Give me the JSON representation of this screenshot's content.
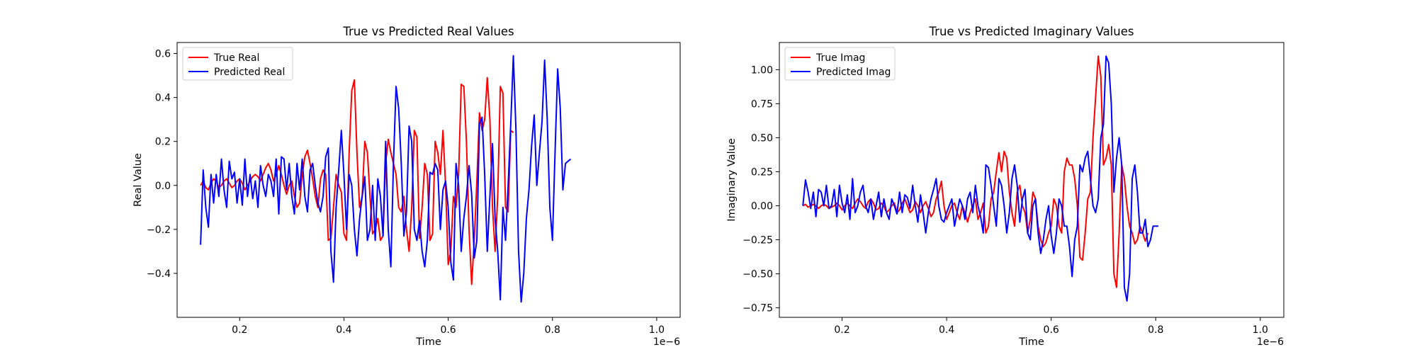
{
  "chart_data": [
    {
      "type": "line",
      "title": "True vs Predicted Real Values",
      "xlabel": "Time",
      "ylabel": "Real Value",
      "x_offset_label": "1e−6",
      "x_scale": 1e-06,
      "xlim": [
        0.08,
        1.045
      ],
      "ylim": [
        -0.6,
        0.65
      ],
      "x_ticks": [
        0.2,
        0.4,
        0.6,
        0.8,
        1.0
      ],
      "x_tick_labels": [
        "0.2",
        "0.4",
        "0.6",
        "0.8",
        "1.0"
      ],
      "y_ticks": [
        -0.4,
        -0.2,
        0.0,
        0.2,
        0.4,
        0.6
      ],
      "y_tick_labels": [
        "−0.4",
        "−0.2",
        "0.0",
        "0.2",
        "0.4",
        "0.6"
      ],
      "grid": false,
      "legend_position": "top-left",
      "x_start": 0.125,
      "x_step": 0.005,
      "series": [
        {
          "name": "True Real",
          "color": "#ff0000",
          "values": [
            0.0,
            0.02,
            -0.01,
            -0.02,
            0.01,
            0.03,
            0.02,
            -0.01,
            0.0,
            0.02,
            0.03,
            0.01,
            -0.01,
            0.0,
            0.02,
            0.03,
            0.01,
            -0.02,
            0.0,
            0.02,
            0.04,
            0.05,
            0.04,
            0.02,
            0.05,
            0.08,
            0.1,
            0.07,
            0.02,
            0.05,
            0.09,
            0.05,
            0.0,
            -0.04,
            0.0,
            0.02,
            -0.05,
            -0.1,
            -0.08,
            0.05,
            0.13,
            0.16,
            0.1,
            0.03,
            -0.05,
            -0.1,
            0.03,
            0.07,
            0.05,
            -0.25,
            -0.24,
            -0.1,
            0.05,
            0.0,
            -0.03,
            -0.22,
            -0.25,
            0.15,
            0.43,
            0.48,
            0.15,
            -0.1,
            -0.05,
            0.2,
            0.15,
            -0.05,
            -0.22,
            -0.2,
            -0.15,
            -0.25,
            -0.23,
            0.1,
            0.21,
            0.15,
            0.1,
            0.05,
            -0.1,
            -0.12,
            -0.05,
            -0.2,
            -0.3,
            -0.1,
            0.25,
            0.22,
            -0.24,
            -0.1,
            0.1,
            0.05,
            -0.25,
            -0.22,
            0.2,
            0.15,
            0.05,
            0.25,
            0.0,
            -0.36,
            -0.3,
            -0.05,
            -0.1,
            0.05,
            0.46,
            0.45,
            0.2,
            -0.2,
            -0.45,
            -0.25,
            0.02,
            0.33,
            0.25,
            0.3,
            0.49,
            0.3,
            -0.1,
            -0.3,
            -0.05,
            0.45,
            0.42,
            -0.1,
            -0.12,
            0.25,
            0.24
          ]
        },
        {
          "name": "Predicted Real",
          "color": "#0000ff",
          "values": [
            -0.27,
            0.07,
            -0.1,
            -0.19,
            0.05,
            -0.08,
            0.05,
            -0.05,
            0.12,
            -0.02,
            -0.1,
            0.11,
            0.03,
            0.06,
            -0.08,
            0.03,
            -0.09,
            0.12,
            -0.05,
            0.05,
            -0.06,
            0.02,
            -0.1,
            0.09,
            0.0,
            -0.05,
            0.05,
            0.02,
            -0.05,
            0.12,
            -0.13,
            0.13,
            0.12,
            -0.02,
            0.1,
            -0.05,
            -0.13,
            0.1,
            -0.02,
            0.12,
            -0.05,
            -0.12,
            0.07,
            0.1,
            0.0,
            -0.08,
            -0.12,
            -0.05,
            0.13,
            0.17,
            -0.3,
            -0.44,
            -0.1,
            0.07,
            0.25,
            0.05,
            -0.2,
            0.05,
            0.0,
            -0.2,
            -0.32,
            -0.15,
            -0.05,
            0.04,
            -0.25,
            -0.2,
            0.0,
            -0.25,
            0.03,
            -0.05,
            -0.23,
            0.2,
            -0.2,
            -0.37,
            0.1,
            0.45,
            0.35,
            0.1,
            -0.23,
            -0.12,
            0.27,
            0.2,
            -0.2,
            -0.25,
            -0.16,
            -0.3,
            -0.37,
            -0.25,
            0.06,
            0.05,
            0.1,
            0.07,
            -0.2,
            -0.02,
            0.02,
            -0.1,
            -0.35,
            -0.43,
            0.1,
            0.0,
            -0.3,
            -0.15,
            -0.05,
            0.09,
            -0.04,
            -0.33,
            -0.25,
            0.28,
            0.31,
            0.05,
            -0.3,
            -0.05,
            0.19,
            -0.15,
            -0.3,
            -0.52,
            -0.1,
            -0.25,
            0.0,
            0.28,
            0.59,
            0.25,
            -0.3,
            -0.53,
            -0.4,
            -0.15,
            -0.02,
            0.18,
            0.32,
            0.0,
            0.15,
            0.29,
            0.57,
            0.3,
            -0.1,
            -0.25,
            0.15,
            0.53,
            0.35,
            -0.02,
            0.1,
            0.11,
            0.12
          ]
        }
      ]
    },
    {
      "type": "line",
      "title": "True vs Predicted Imaginary Values",
      "xlabel": "Time",
      "ylabel": "Imaginary Value",
      "x_offset_label": "1e−6",
      "x_scale": 1e-06,
      "xlim": [
        0.08,
        1.045
      ],
      "ylim": [
        -0.82,
        1.2
      ],
      "x_ticks": [
        0.2,
        0.4,
        0.6,
        0.8,
        1.0
      ],
      "x_tick_labels": [
        "0.2",
        "0.4",
        "0.6",
        "0.8",
        "1.0"
      ],
      "y_ticks": [
        -0.75,
        -0.5,
        -0.25,
        0.0,
        0.25,
        0.5,
        0.75,
        1.0
      ],
      "y_tick_labels": [
        "−0.75",
        "−0.50",
        "−0.25",
        "0.00",
        "0.25",
        "0.50",
        "0.75",
        "1.00"
      ],
      "grid": false,
      "legend_position": "top-left",
      "x_start": 0.125,
      "x_step": 0.005,
      "series": [
        {
          "name": "True Imag",
          "color": "#ff0000",
          "values": [
            0.0,
            0.01,
            -0.01,
            0.0,
            0.01,
            0.0,
            -0.02,
            0.0,
            0.01,
            0.0,
            -0.02,
            -0.01,
            0.0,
            0.02,
            0.0,
            -0.03,
            0.0,
            0.02,
            0.0,
            -0.02,
            0.02,
            0.05,
            0.03,
            0.0,
            -0.02,
            0.03,
            0.05,
            0.02,
            -0.03,
            -0.02,
            0.02,
            0.0,
            -0.05,
            -0.03,
            0.0,
            0.02,
            -0.05,
            -0.03,
            0.02,
            0.05,
            0.0,
            -0.05,
            -0.03,
            0.03,
            0.0,
            -0.05,
            0.0,
            0.03,
            -0.02,
            -0.08,
            -0.05,
            0.05,
            0.1,
            0.18,
            0.0,
            -0.1,
            -0.05,
            0.0,
            0.02,
            -0.05,
            -0.1,
            0.0,
            -0.05,
            -0.12,
            -0.05,
            0.0,
            0.05,
            -0.1,
            -0.05,
            0.02,
            -0.2,
            -0.15,
            0.05,
            0.1,
            0.25,
            0.39,
            0.25,
            0.4,
            0.35,
            0.1,
            -0.05,
            -0.15,
            0.1,
            0.15,
            0.0,
            -0.05,
            -0.2,
            -0.1,
            0.1,
            0.05,
            -0.15,
            -0.25,
            -0.3,
            -0.27,
            -0.2,
            -0.15,
            0.05,
            0.0,
            -0.15,
            -0.2,
            0.25,
            0.35,
            0.3,
            0.3,
            0.2,
            0.0,
            -0.38,
            -0.4,
            -0.2,
            0.05,
            0.1,
            0.5,
            0.8,
            1.1,
            0.95,
            0.3,
            0.35,
            0.45,
            0.3,
            -0.5,
            -0.6,
            -0.2,
            0.3,
            0.2,
            0.0,
            -0.15,
            -0.2,
            -0.28,
            -0.25,
            -0.15,
            -0.2,
            -0.26,
            -0.2
          ]
        },
        {
          "name": "Predicted Imag",
          "color": "#0000ff",
          "values": [
            0.0,
            0.19,
            0.1,
            -0.02,
            0.1,
            -0.08,
            0.12,
            0.1,
            0.0,
            0.15,
            -0.02,
            0.0,
            0.12,
            -0.08,
            0.15,
            0.02,
            -0.05,
            0.08,
            -0.1,
            0.2,
            -0.05,
            0.0,
            0.1,
            0.15,
            0.0,
            -0.05,
            0.05,
            -0.1,
            0.0,
            0.1,
            -0.08,
            0.05,
            -0.05,
            -0.1,
            0.05,
            0.0,
            -0.06,
            0.1,
            -0.05,
            0.08,
            0.06,
            -0.02,
            0.15,
            0.0,
            -0.12,
            0.08,
            -0.05,
            -0.2,
            -0.05,
            0.05,
            0.12,
            0.2,
            0.0,
            -0.1,
            -0.12,
            -0.05,
            0.0,
            0.05,
            -0.15,
            -0.05,
            0.05,
            0.0,
            -0.1,
            0.05,
            0.1,
            -0.05,
            0.15,
            0.0,
            -0.08,
            -0.2,
            0.3,
            0.28,
            0.15,
            0.0,
            -0.15,
            0.2,
            0.15,
            0.0,
            -0.2,
            -0.05,
            0.2,
            0.3,
            0.15,
            -0.12,
            0.05,
            0.12,
            -0.2,
            -0.25,
            0.0,
            0.05,
            -0.2,
            -0.35,
            -0.25,
            -0.1,
            0.0,
            -0.22,
            -0.35,
            -0.2,
            0.05,
            0.0,
            -0.15,
            -0.15,
            -0.3,
            -0.52,
            -0.25,
            -0.15,
            0.3,
            0.25,
            0.35,
            0.4,
            0.2,
            0.0,
            -0.05,
            0.05,
            0.5,
            0.6,
            1.1,
            1.05,
            0.75,
            0.1,
            0.35,
            0.5,
            0.3,
            -0.6,
            -0.7,
            -0.5,
            0.2,
            0.3,
            0.1,
            -0.2,
            -0.2,
            -0.1,
            -0.3,
            -0.25,
            -0.15,
            -0.15,
            -0.15
          ]
        }
      ]
    }
  ]
}
